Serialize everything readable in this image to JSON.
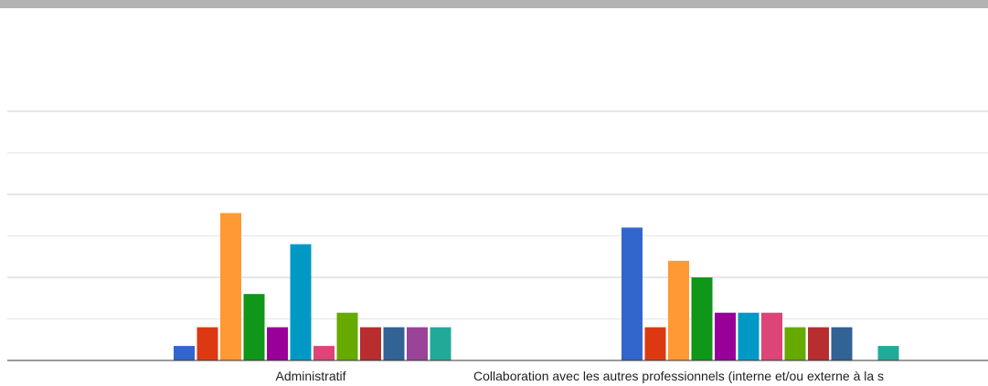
{
  "chart_data": {
    "type": "bar",
    "title": "",
    "xlabel": "",
    "ylabel": "",
    "ylim": [
      0,
      6
    ],
    "grid": true,
    "legend": "none",
    "categories": [
      "Administratif",
      "Collaboration avec les autres professionnels (interne et/ou externe à la s"
    ],
    "series": [
      {
        "color": "#3366cc",
        "values": [
          0.35,
          3.2
        ]
      },
      {
        "color": "#dc3912",
        "values": [
          0.8,
          0.8
        ]
      },
      {
        "color": "#ff9933",
        "values": [
          3.55,
          2.4
        ]
      },
      {
        "color": "#109618",
        "values": [
          1.6,
          2.0
        ]
      },
      {
        "color": "#990099",
        "values": [
          0.8,
          1.15
        ]
      },
      {
        "color": "#0099c6",
        "values": [
          2.8,
          1.15
        ]
      },
      {
        "color": "#dd4477",
        "values": [
          0.35,
          1.15
        ]
      },
      {
        "color": "#66aa00",
        "values": [
          1.15,
          0.8
        ]
      },
      {
        "color": "#b82e2e",
        "values": [
          0.8,
          0.8
        ]
      },
      {
        "color": "#316395",
        "values": [
          0.8,
          0.8
        ]
      },
      {
        "color": "#994499",
        "values": [
          0.8,
          0
        ]
      },
      {
        "color": "#22aa99",
        "values": [
          0.8,
          0.35
        ]
      }
    ]
  }
}
